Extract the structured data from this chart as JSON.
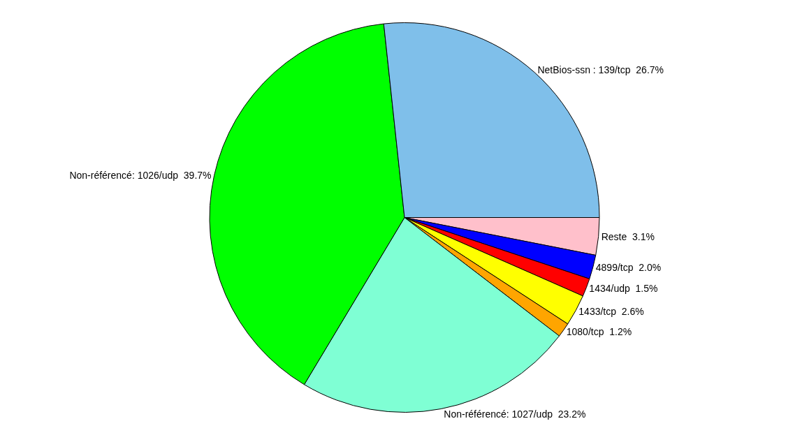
{
  "chart_data": {
    "type": "pie",
    "categories": [
      "NetBios-ssn : 139/tcp",
      "Non-référencé: 1026/udp",
      "Non-référencé: 1027/udp",
      "1080/tcp",
      "1433/tcp",
      "1434/udp",
      "4899/tcp",
      "Reste"
    ],
    "values": [
      26.7,
      39.7,
      23.2,
      1.2,
      2.6,
      1.5,
      2.0,
      3.1
    ],
    "value_labels": [
      "26.7%",
      "39.7%",
      "23.2%",
      "1.2%",
      "2.6%",
      "1.5%",
      "2.0%",
      "3.1%"
    ],
    "colors": [
      "#7fbfea",
      "#00ff00",
      "#7fffd4",
      "#ffa500",
      "#ffff00",
      "#ff0000",
      "#0000ff",
      "#ffc0cb"
    ],
    "legend": false
  }
}
